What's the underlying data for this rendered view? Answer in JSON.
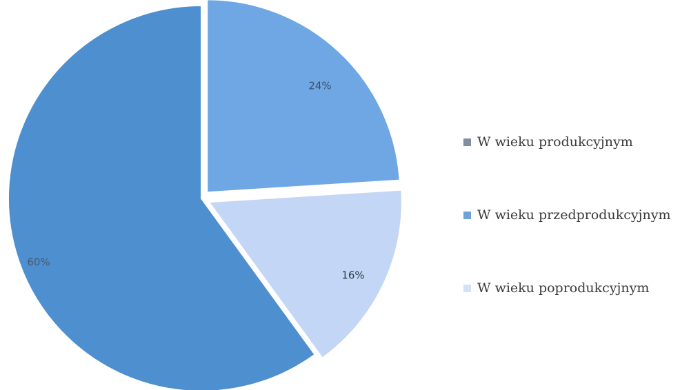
{
  "chart_data": {
    "type": "pie",
    "categories": [
      "W wieku produkcyjnym",
      "W wieku przedprodukcyjnym",
      "W wieku poprodukcyjnym"
    ],
    "values": [
      60,
      24,
      16
    ],
    "labels": [
      "60%",
      "24%",
      "16%"
    ],
    "colors": [
      "#4e8fcf",
      "#6fa7e4",
      "#c3d6f5"
    ],
    "legend_swatch_colors": [
      "#7f8ea0",
      "#6fa2d8",
      "#d3e1f7"
    ],
    "label_colors": [
      "#445a72",
      "#3c4f66",
      "#2a3a4c"
    ],
    "legend_position": "right",
    "exploded": true,
    "title": ""
  }
}
